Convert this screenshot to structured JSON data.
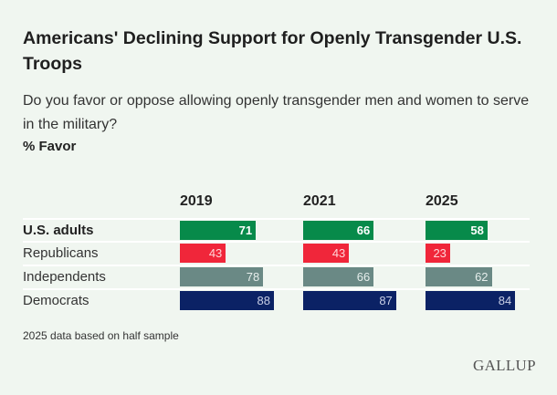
{
  "title": "Americans' Declining Support for Openly Transgender U.S. Troops",
  "subtitle": "Do you favor or oppose allowing openly transgender men and women to serve in the military?",
  "unit_label": "% Favor",
  "footnote": "2025 data based on half sample",
  "logo": "GALLUP",
  "chart_data": {
    "type": "bar",
    "orientation": "horizontal",
    "columns": [
      "2019",
      "2021",
      "2025"
    ],
    "xlim": [
      0,
      100
    ],
    "grid": false,
    "rows": [
      {
        "label": "U.S. adults",
        "bold": true,
        "color": "#078a4a",
        "text_color": "#ffffff",
        "values": [
          71,
          66,
          58
        ]
      },
      {
        "label": "Republicans",
        "bold": false,
        "color": "#f0263a",
        "text_color": "#ffd5d8",
        "values": [
          43,
          43,
          23
        ]
      },
      {
        "label": "Independents",
        "bold": false,
        "color": "#6a8985",
        "text_color": "#e6eeec",
        "values": [
          78,
          66,
          62
        ]
      },
      {
        "label": "Democrats",
        "bold": false,
        "color": "#0b2265",
        "text_color": "#c9d0e6",
        "values": [
          88,
          87,
          84
        ]
      }
    ]
  }
}
